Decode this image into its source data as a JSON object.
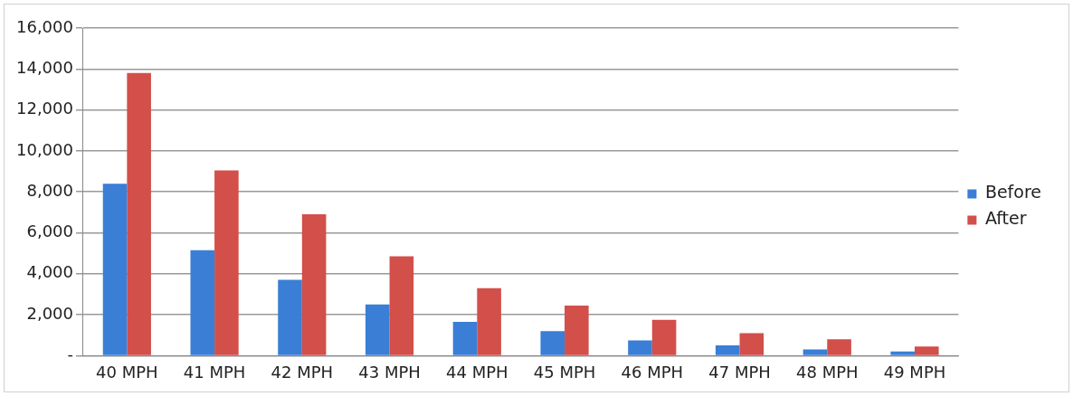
{
  "chart_data": {
    "type": "bar",
    "categories": [
      "40 MPH",
      "41 MPH",
      "42 MPH",
      "43 MPH",
      "44 MPH",
      "45 MPH",
      "46 MPH",
      "47 MPH",
      "48 MPH",
      "49 MPH"
    ],
    "series": [
      {
        "name": "Before",
        "color": "#3a7ed6",
        "values": [
          8400,
          5150,
          3700,
          2500,
          1650,
          1200,
          750,
          500,
          300,
          200
        ]
      },
      {
        "name": "After",
        "color": "#d24f4a",
        "values": [
          13800,
          9050,
          6900,
          4850,
          3300,
          2450,
          1750,
          1100,
          800,
          450
        ]
      }
    ],
    "ylim": [
      0,
      16000
    ],
    "yticks": [
      {
        "value": 0,
        "label": "-"
      },
      {
        "value": 2000,
        "label": "2,000"
      },
      {
        "value": 4000,
        "label": "4,000"
      },
      {
        "value": 6000,
        "label": "6,000"
      },
      {
        "value": 8000,
        "label": "8,000"
      },
      {
        "value": 10000,
        "label": "10,000"
      },
      {
        "value": 12000,
        "label": "12,000"
      },
      {
        "value": 14000,
        "label": "14,000"
      },
      {
        "value": 16000,
        "label": "16,000"
      }
    ],
    "grid": "y",
    "legend": "right"
  }
}
